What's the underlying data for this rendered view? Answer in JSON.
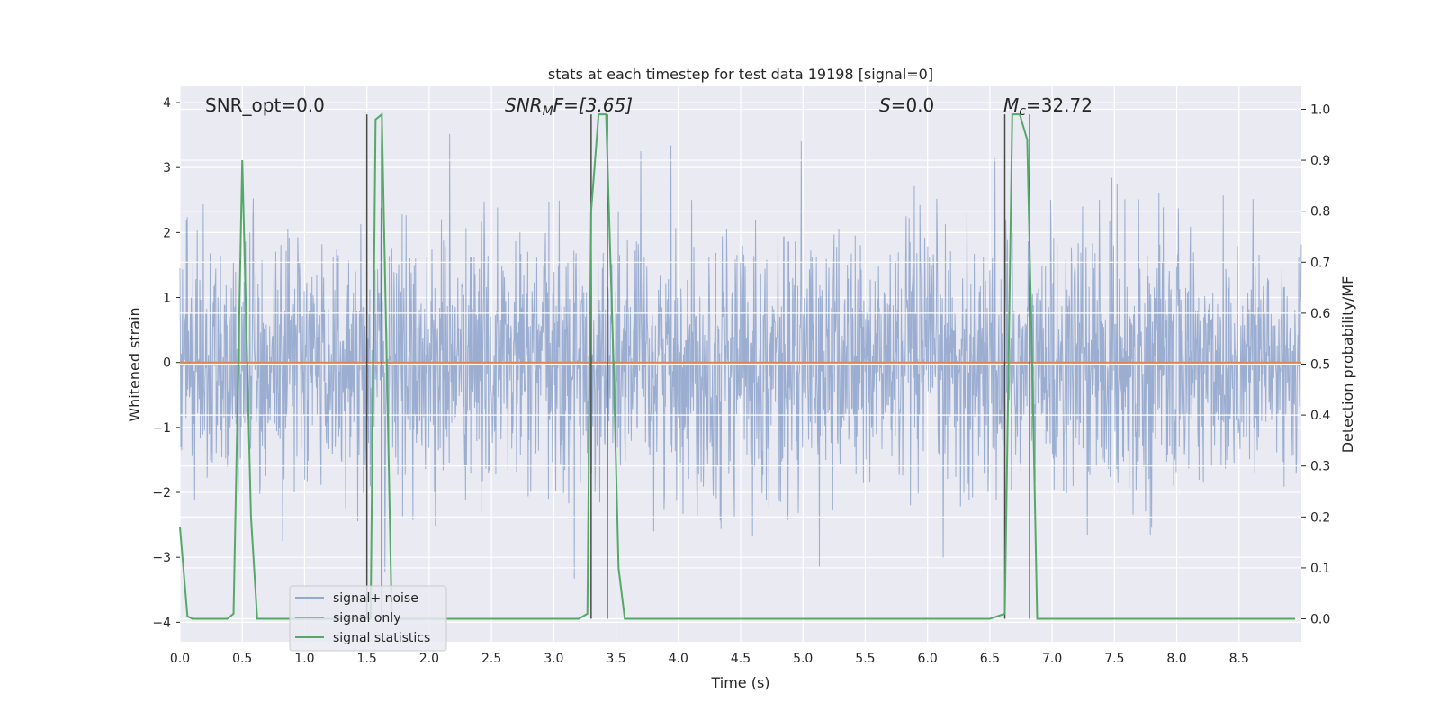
{
  "chart_data": {
    "type": "line",
    "title": "stats at each timestep for test data 19198 [signal=0]",
    "xlabel": "Time (s)",
    "ylabel_left": "Whitened strain",
    "ylabel_right": "Detection probability/MF",
    "xlim": [
      0.0,
      9.0
    ],
    "ylim_left": [
      -4.3,
      4.25
    ],
    "ylim_right": [
      -0.045,
      1.045
    ],
    "x_ticks": [
      "0.0",
      "0.5",
      "1.0",
      "1.5",
      "2.0",
      "2.5",
      "3.0",
      "3.5",
      "4.0",
      "4.5",
      "5.0",
      "5.5",
      "6.0",
      "6.5",
      "7.0",
      "7.5",
      "8.0",
      "8.5"
    ],
    "y_ticks_left": [
      "4",
      "3",
      "2",
      "1",
      "0",
      "−1",
      "−2",
      "−3",
      "−4"
    ],
    "y_ticks_right": [
      "1.0",
      "0.9",
      "0.8",
      "0.7",
      "0.6",
      "0.5",
      "0.4",
      "0.3",
      "0.2",
      "0.1",
      "0.0"
    ],
    "grid": true,
    "annotations": {
      "snr_opt": "SNR_opt=0.0",
      "snr_mf_sym": "SNR",
      "snr_mf_sub": "M",
      "snr_mf_rest": "F=[3.65]",
      "s_sym": "S",
      "s_rest": "=0.0",
      "mc_sym": "M",
      "mc_sub": "c",
      "mc_rest": "=32.72"
    },
    "legend": {
      "placement": "lower-left",
      "entries": [
        "signal+ noise",
        "signal only",
        "signal statistics"
      ]
    },
    "series": [
      {
        "name": "signal+ noise",
        "axis": "left",
        "color": "#4c72b0",
        "description_values": "white noise, approx range -4 to 3.7, sampled over 0-9 s",
        "noise_sigma": 1.0
      },
      {
        "name": "signal only",
        "axis": "left",
        "color": "#dd8452",
        "x": [
          0.0,
          9.0
        ],
        "y": [
          0.0,
          0.0
        ]
      },
      {
        "name": "signal statistics",
        "axis": "right",
        "color": "#55a868",
        "x": [
          0.0,
          0.06,
          0.1,
          0.2,
          0.3,
          0.38,
          0.43,
          0.5,
          0.55,
          0.57,
          0.62,
          0.7,
          0.8,
          0.9,
          1.0,
          1.1,
          1.2,
          1.3,
          1.4,
          1.5,
          1.53,
          1.57,
          1.62,
          1.66,
          1.7,
          1.8,
          2.0,
          2.5,
          3.0,
          3.2,
          3.27,
          3.3,
          3.36,
          3.42,
          3.48,
          3.52,
          3.57,
          3.7,
          4.0,
          5.0,
          6.0,
          6.5,
          6.62,
          6.68,
          6.74,
          6.8,
          6.84,
          6.88,
          7.0,
          8.0,
          8.95
        ],
        "y": [
          0.18,
          0.005,
          0.0,
          0.0,
          0.0,
          0.0,
          0.01,
          0.9,
          0.4,
          0.2,
          0.0,
          0.0,
          0.0,
          0.0,
          0.0,
          0.0,
          0.0,
          0.0,
          0.0,
          0.0,
          0.0,
          0.98,
          0.99,
          0.5,
          0.0,
          0.0,
          0.0,
          0.0,
          0.0,
          0.0,
          0.01,
          0.8,
          0.99,
          0.99,
          0.5,
          0.1,
          0.0,
          0.0,
          0.0,
          0.0,
          0.0,
          0.0,
          0.01,
          0.99,
          0.99,
          0.94,
          0.5,
          0.0,
          0.0,
          0.0,
          0.0
        ]
      }
    ],
    "vertical_lines": {
      "color": "#4a4a4a",
      "x": [
        1.5,
        1.62,
        3.3,
        3.43,
        6.62,
        6.82
      ],
      "y_right_top": 0.99
    }
  }
}
